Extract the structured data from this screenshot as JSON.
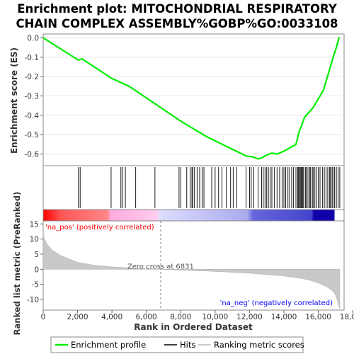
{
  "chart_data": {
    "type": "line",
    "title_lines": [
      "Enrichment plot: MITOCHONDRIAL RESPIRATORY",
      "CHAIN COMPLEX ASSEMBLY%GOBP%GO:0033108"
    ],
    "top_panel": {
      "ylabel": "Enrichment score (ES)",
      "ylim": [
        -0.66,
        0.02
      ],
      "yticks": [
        "0.0",
        "-0.1",
        "-0.2",
        "-0.3",
        "-0.4",
        "-0.5",
        "-0.6"
      ],
      "ytick_values": [
        0.0,
        -0.1,
        -0.2,
        -0.3,
        -0.4,
        -0.5,
        -0.6
      ],
      "series_name": "Enrichment profile",
      "color": "#00ee00",
      "x": [
        0,
        2050,
        2250,
        4000,
        5000,
        6500,
        8000,
        9500,
        11000,
        11800,
        12200,
        12500,
        12700,
        13000,
        13300,
        13600,
        14000,
        14300,
        14700,
        14900,
        15000,
        15200,
        15400,
        15700,
        15900,
        16100,
        16300,
        16500,
        16700,
        16900,
        17050,
        17200,
        17250
      ],
      "y": [
        0.0,
        -0.115,
        -0.108,
        -0.21,
        -0.25,
        -0.34,
        -0.43,
        -0.51,
        -0.575,
        -0.61,
        -0.615,
        -0.625,
        -0.62,
        -0.605,
        -0.595,
        -0.6,
        -0.585,
        -0.57,
        -0.55,
        -0.48,
        -0.46,
        -0.41,
        -0.39,
        -0.36,
        -0.33,
        -0.3,
        -0.27,
        -0.21,
        -0.15,
        -0.09,
        -0.05,
        0.0,
        0.0
      ]
    },
    "hits": [
      2050,
      2150,
      3950,
      4520,
      4620,
      4780,
      5380,
      6500,
      7900,
      8000,
      8350,
      8550,
      8650,
      8700,
      8800,
      8950,
      9100,
      9250,
      9350,
      9800,
      10000,
      10200,
      10400,
      10650,
      10900,
      11050,
      11250,
      11800,
      12000,
      12100,
      12250,
      12500,
      12700,
      12800,
      12900,
      13000,
      13100,
      13200,
      13300,
      13450,
      13600,
      13750,
      13900,
      14000,
      14100,
      14200,
      14300,
      14450,
      14550,
      14700,
      14800,
      14850,
      14900,
      14950,
      15000,
      15050,
      15100,
      15150,
      15250,
      15300,
      15400,
      15500,
      15550,
      15650,
      15700,
      15800,
      15900,
      16000,
      16100,
      16250,
      16350,
      16450,
      16550,
      16650,
      16700,
      16800,
      16850,
      16950,
      17050,
      17150,
      17250
    ],
    "bottom_panel": {
      "ylabel": "Ranked list metric (PreRanked)",
      "ylim": [
        -13.5,
        16
      ],
      "yticks": [
        "15",
        "10",
        "5",
        "0",
        "-5",
        "-10"
      ],
      "ytick_values": [
        15,
        10,
        5,
        0,
        -5,
        -10
      ],
      "x": [
        0,
        50,
        200,
        500,
        1000,
        2000,
        3000,
        4000,
        5000,
        6000,
        6831,
        8000,
        10000,
        12000,
        14000,
        15000,
        15500,
        16000,
        16500,
        16800,
        17000,
        17150,
        17250
      ],
      "y": [
        12.5,
        10.5,
        8.5,
        6.5,
        4.6,
        2.3,
        1.3,
        0.8,
        0.45,
        0.2,
        0.0,
        -0.25,
        -0.7,
        -1.3,
        -2.2,
        -3.0,
        -3.6,
        -4.5,
        -5.8,
        -7.0,
        -8.5,
        -11.0,
        -13.0
      ],
      "zero_cross_label": "Zero cross at 6831",
      "zero_cross_x": 6831,
      "pos_label": "'na_pos' (positively correlated)",
      "neg_label": "'na_neg' (negatively correlated)"
    },
    "xlabel": "Rank in Ordered Dataset",
    "xlim": [
      0,
      17500
    ],
    "xticks": [
      "0",
      "2,000",
      "4,000",
      "6,000",
      "8,000",
      "10,000",
      "12,000",
      "14,000",
      "16,000",
      "18,000"
    ],
    "xtick_values": [
      0,
      2000,
      4000,
      6000,
      8000,
      10000,
      12000,
      14000,
      16000,
      18000
    ],
    "n_genes": 17250,
    "legend": [
      {
        "label": "Enrichment profile",
        "color": "#00ee00"
      },
      {
        "label": "Hits",
        "color": "#000000"
      },
      {
        "label": "Ranking metric scores",
        "color": "#bbbbbb"
      }
    ],
    "colors": {
      "pos_label": "#ff0000",
      "neg_label": "#0000ff",
      "zero_cross": "#555555"
    }
  }
}
